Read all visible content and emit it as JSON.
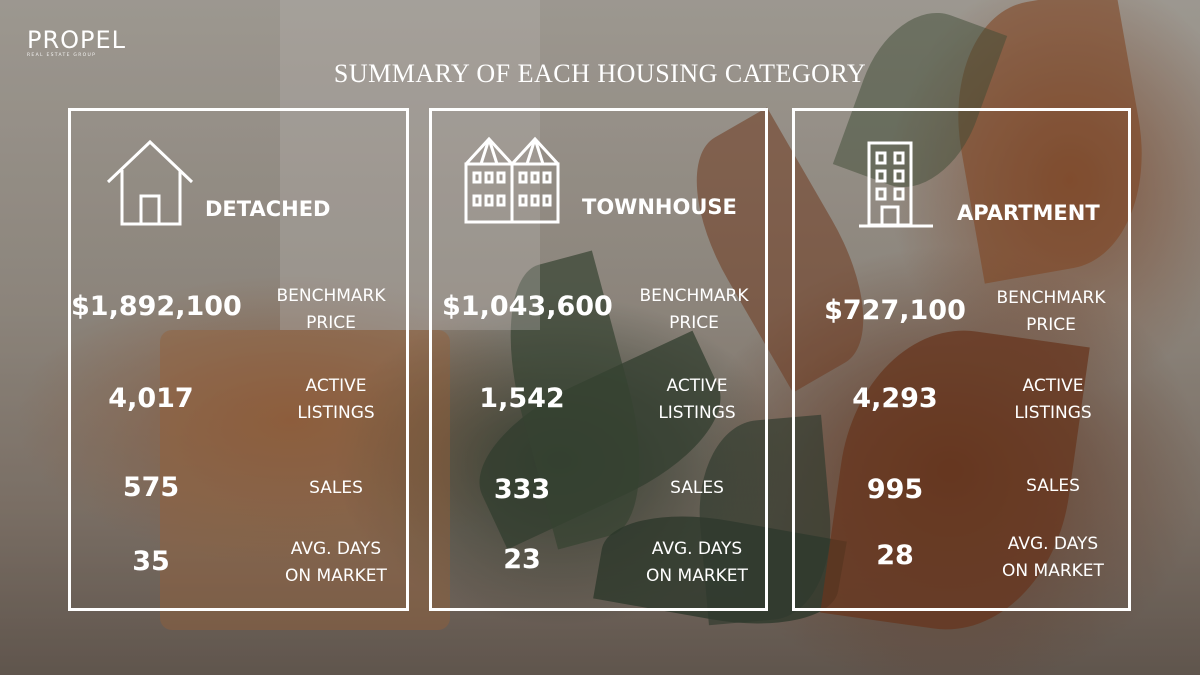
{
  "logo": {
    "main": "PROPEL",
    "sub": "REAL ESTATE GROUP"
  },
  "title": "SUMMARY OF EACH HOUSING CATEGORY",
  "metric_labels": {
    "benchmark_line1": "BENCHMARK",
    "benchmark_line2": "PRICE",
    "active_line1": "ACTIVE",
    "active_line2": "LISTINGS",
    "sales": "SALES",
    "days_line1": "AVG. DAYS",
    "days_line2": "ON MARKET"
  },
  "categories": [
    {
      "name": "DETACHED",
      "icon": "house-icon",
      "benchmark_price": "$1,892,100",
      "active_listings": "4,017",
      "sales": "575",
      "avg_days": "35"
    },
    {
      "name": "TOWNHOUSE",
      "icon": "townhouse-icon",
      "benchmark_price": "$1,043,600",
      "active_listings": "1,542",
      "sales": "333",
      "avg_days": "23"
    },
    {
      "name": "APARTMENT",
      "icon": "apartment-building-icon",
      "benchmark_price": "$727,100",
      "active_listings": "4,293",
      "sales": "995",
      "avg_days": "28"
    }
  ],
  "colors": {
    "text": "#ffffff",
    "border": "#ffffff"
  }
}
